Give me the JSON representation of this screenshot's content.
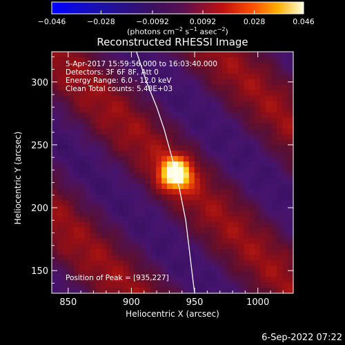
{
  "colorbar": {
    "ticks": [
      "−0.046",
      "−0.028",
      "−0.0092",
      "0.0092",
      "0.028",
      "0.046"
    ],
    "tick_values": [
      -0.046,
      -0.028,
      -0.0092,
      0.0092,
      0.028,
      0.046
    ],
    "range": [
      -0.046,
      0.046
    ],
    "units_prefix": "(photons cm",
    "units_exp1": "−2",
    "units_mid": " s",
    "units_exp2": "−1",
    "units_mid2": " asec",
    "units_exp3": "−2",
    "units_suffix": ")"
  },
  "info": {
    "time_range": "5-Apr-2017 15:59:56.000 to 16:03:40.000",
    "detectors": "Detectors: 3F 6F 8F, Att 0",
    "energy_range": "Energy Range: 6.0 - 12.0 keV",
    "algorithm": "Clean    Total counts: 5.48E+03",
    "peak": "Position of Peak = [935,227]"
  },
  "timestamp": "6-Sep-2022 07:22",
  "colors": {
    "background": "#000000",
    "axis": "#ffffff",
    "limb": "#ffffff"
  },
  "chart_data": {
    "type": "heatmap",
    "title": "Reconstructed RHESSI Image",
    "xlabel": "Heliocentric X (arcsec)",
    "ylabel": "Heliocentric Y (arcsec)",
    "xlim": [
      837,
      1028
    ],
    "ylim": [
      132,
      324
    ],
    "xticks": [
      850,
      900,
      950,
      1000
    ],
    "yticks": [
      150,
      200,
      250,
      300
    ],
    "colormap": "blue-purple-red-yellow-white",
    "peak": {
      "x": 935,
      "y": 227
    },
    "limb_curve": [
      [
        904,
        324
      ],
      [
        912,
        300
      ],
      [
        920,
        280
      ],
      [
        926,
        262
      ],
      [
        932,
        240
      ],
      [
        938,
        215
      ],
      [
        943,
        190
      ],
      [
        946,
        165
      ],
      [
        949,
        140
      ],
      [
        950,
        132
      ]
    ]
  }
}
